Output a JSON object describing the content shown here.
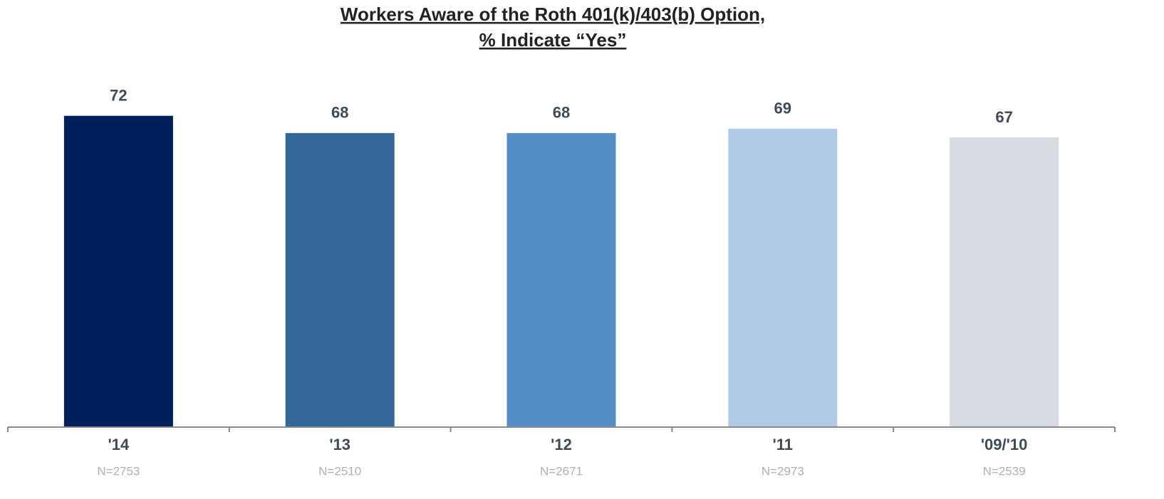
{
  "chart_data": {
    "type": "bar",
    "title": [
      "Workers Aware of the Roth 401(k)/403(b) Option,",
      "% Indicate “Yes”"
    ],
    "categories": [
      "'14",
      "'13",
      "'12",
      "'11",
      "'09/'10"
    ],
    "sample_sizes": [
      "N=2753",
      "N=2510",
      "N=2671",
      "N=2973",
      "N=2539"
    ],
    "values": [
      72,
      68,
      68,
      69,
      67
    ],
    "colors": [
      "#00205b",
      "#336699",
      "#558ec6",
      "#b0cbe5",
      "#d6dce2"
    ]
  }
}
